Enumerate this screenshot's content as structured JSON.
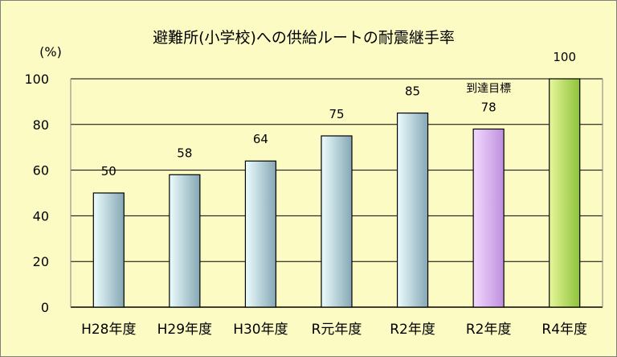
{
  "chart_data": {
    "type": "bar",
    "title": "避難所(小学校)への供給ルートの耐震継手率",
    "ylabel": "(%)",
    "xlabel": "",
    "ylim": [
      0,
      100
    ],
    "yticks": [
      0,
      20,
      40,
      60,
      80,
      100
    ],
    "grid": true,
    "categories": [
      "H28年度",
      "H29年度",
      "H30年度",
      "R元年度",
      "R2年度",
      "R2年度",
      "R4年度"
    ],
    "values": [
      50,
      58,
      64,
      75,
      85,
      78,
      100
    ],
    "value_labels": [
      "50",
      "58",
      "64",
      "75",
      "85",
      "78",
      "100"
    ],
    "annotation": {
      "text": "到達目標",
      "category_index": 5
    },
    "colors": {
      "background": "#fdfbc4",
      "grid": "#000000",
      "bar_actual_light": "#ecfdfe",
      "bar_actual_dark": "#85a7b4",
      "bar_target_light": "#f3d9ff",
      "bar_target_dark": "#bf8fdd",
      "bar_goal_light": "#e6f79a",
      "bar_goal_dark": "#8ec23a"
    },
    "bar_styles": [
      "actual",
      "actual",
      "actual",
      "actual",
      "actual",
      "target",
      "goal"
    ]
  }
}
